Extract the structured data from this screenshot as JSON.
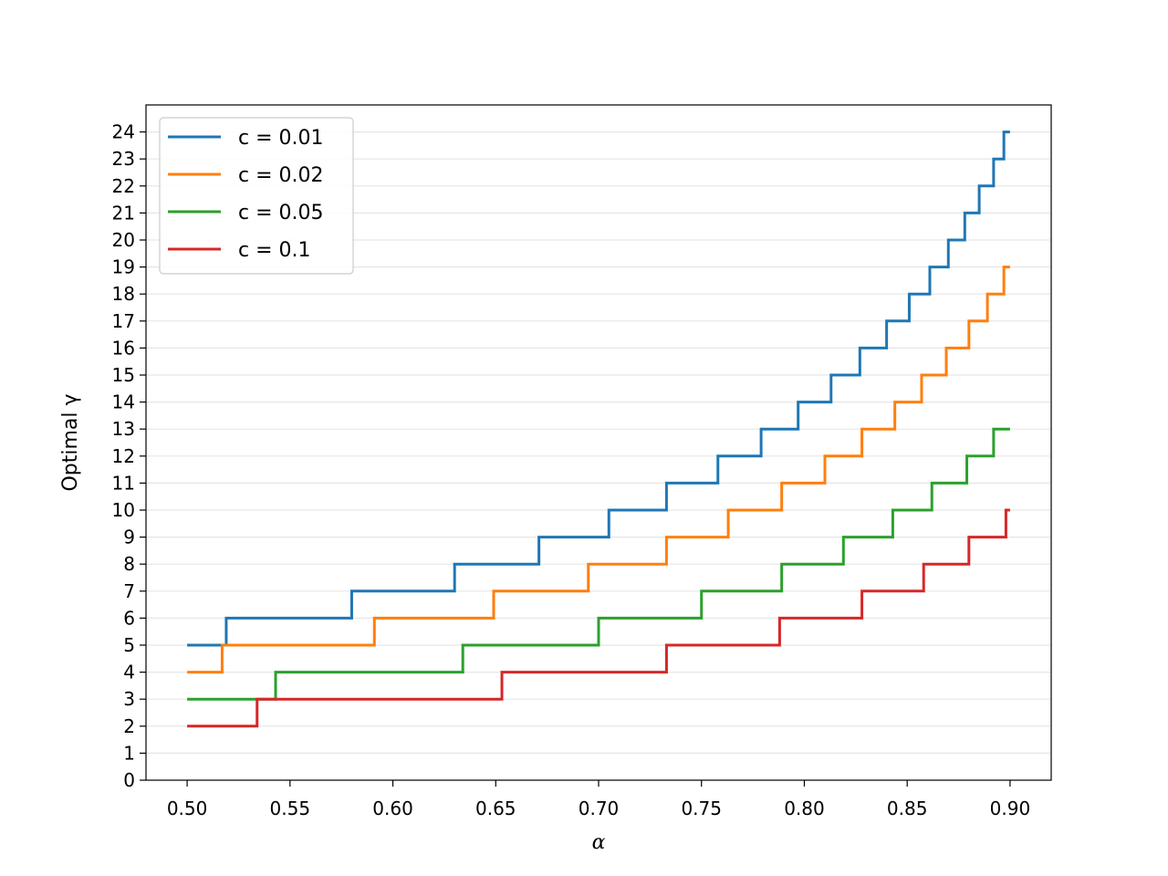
{
  "chart_data": {
    "type": "line",
    "title": "",
    "xlabel": "α",
    "ylabel": "Optimal γ",
    "xlim": [
      0.48,
      0.92
    ],
    "ylim": [
      0,
      25
    ],
    "x_ticks": [
      0.5,
      0.55,
      0.6,
      0.65,
      0.7,
      0.75,
      0.8,
      0.85,
      0.9
    ],
    "x_tick_labels": [
      "0.50",
      "0.55",
      "0.60",
      "0.65",
      "0.70",
      "0.75",
      "0.80",
      "0.85",
      "0.90"
    ],
    "y_ticks": [
      0,
      1,
      2,
      3,
      4,
      5,
      6,
      7,
      8,
      9,
      10,
      11,
      12,
      13,
      14,
      15,
      16,
      17,
      18,
      19,
      20,
      21,
      22,
      23,
      24
    ],
    "y_tick_labels": [
      "0",
      "1",
      "2",
      "3",
      "4",
      "5",
      "6",
      "7",
      "8",
      "9",
      "10",
      "11",
      "12",
      "13",
      "14",
      "15",
      "16",
      "17",
      "18",
      "19",
      "20",
      "21",
      "22",
      "23",
      "24"
    ],
    "grid": "horizontal",
    "legend_position": "top-left",
    "series": [
      {
        "name": "c = 0.01",
        "color": "#1f77b4",
        "x_start": 0.5,
        "x_end": 0.9,
        "start_value": 5,
        "step_x": [
          0.519,
          0.58,
          0.63,
          0.671,
          0.705,
          0.733,
          0.758,
          0.779,
          0.797,
          0.813,
          0.827,
          0.84,
          0.851,
          0.861,
          0.87,
          0.878,
          0.885,
          0.892,
          0.897
        ]
      },
      {
        "name": "c = 0.02",
        "color": "#ff7f0e",
        "x_start": 0.5,
        "x_end": 0.9,
        "start_value": 4,
        "step_x": [
          0.517,
          0.591,
          0.649,
          0.695,
          0.733,
          0.763,
          0.789,
          0.81,
          0.828,
          0.844,
          0.857,
          0.869,
          0.88,
          0.889,
          0.897
        ]
      },
      {
        "name": "c = 0.05",
        "color": "#2ca02c",
        "x_start": 0.5,
        "x_end": 0.9,
        "start_value": 3,
        "step_x": [
          0.543,
          0.634,
          0.7,
          0.75,
          0.789,
          0.819,
          0.843,
          0.862,
          0.879,
          0.892
        ]
      },
      {
        "name": "c = 0.1",
        "color": "#d62728",
        "x_start": 0.5,
        "x_end": 0.9,
        "start_value": 2,
        "step_x": [
          0.534,
          0.653,
          0.733,
          0.788,
          0.828,
          0.858,
          0.88,
          0.898
        ]
      }
    ]
  }
}
